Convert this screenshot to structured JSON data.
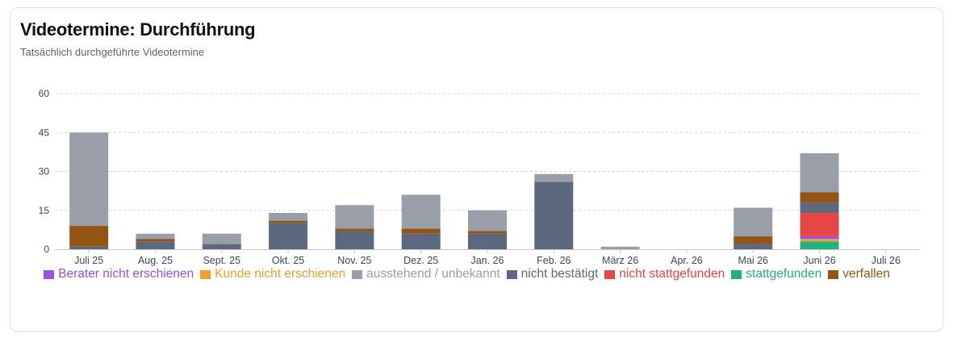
{
  "card": {
    "title": "Videotermine: Durchführung",
    "subtitle": "Tatsächlich durchgeführte Videotermine"
  },
  "chart_data": {
    "type": "bar",
    "stacked": true,
    "categories": [
      "Juli 25",
      "Aug. 25",
      "Sept. 25",
      "Okt. 25",
      "Nov. 25",
      "Dez. 25",
      "Jan. 26",
      "Feb. 26",
      "März 26",
      "Apr. 26",
      "Mai 26",
      "Juni 26",
      "Juli 26"
    ],
    "yticks": [
      0,
      15,
      30,
      45,
      60
    ],
    "ylim": [
      0,
      60
    ],
    "grid": true,
    "legend_position": "bottom",
    "series": [
      {
        "name": "stattgefunden",
        "color": "#22b07d",
        "values": [
          0,
          0,
          0,
          0,
          0,
          0,
          0,
          0,
          0,
          0,
          0,
          3,
          0
        ]
      },
      {
        "name": "Kunde nicht erschienen",
        "color": "#eda02f",
        "values": [
          0,
          0,
          0,
          0,
          0,
          0,
          0,
          0,
          0,
          0,
          0,
          1,
          0
        ]
      },
      {
        "name": "Berater nicht erschienen",
        "color": "#9b4fe6",
        "values": [
          0,
          0,
          0,
          0,
          0,
          0,
          0,
          0,
          0,
          0,
          0,
          1,
          0
        ]
      },
      {
        "name": "nicht stattgefunden",
        "color": "#e84545",
        "values": [
          0,
          0,
          0,
          0,
          0,
          0,
          0,
          0,
          0,
          0,
          0,
          9,
          0
        ]
      },
      {
        "name": "nicht bestätigt",
        "color": "#5c687e",
        "values": [
          1,
          3,
          2,
          10,
          7,
          6,
          6,
          26,
          0,
          0,
          2,
          4,
          0
        ]
      },
      {
        "name": "verfallen",
        "color": "#935514",
        "values": [
          8,
          1,
          0,
          1,
          1,
          2,
          1,
          0,
          0,
          0,
          3,
          4,
          0
        ]
      },
      {
        "name": "ausstehend / unbekannt",
        "color": "#999ea8",
        "values": [
          36,
          2,
          4,
          3,
          9,
          13,
          8,
          3,
          1,
          0,
          11,
          15,
          0
        ]
      }
    ],
    "legend_order": [
      "Berater nicht erschienen",
      "Kunde nicht erschienen",
      "ausstehend / unbekannt",
      "nicht bestätigt",
      "nicht stattgefunden",
      "stattgefunden",
      "verfallen"
    ]
  }
}
